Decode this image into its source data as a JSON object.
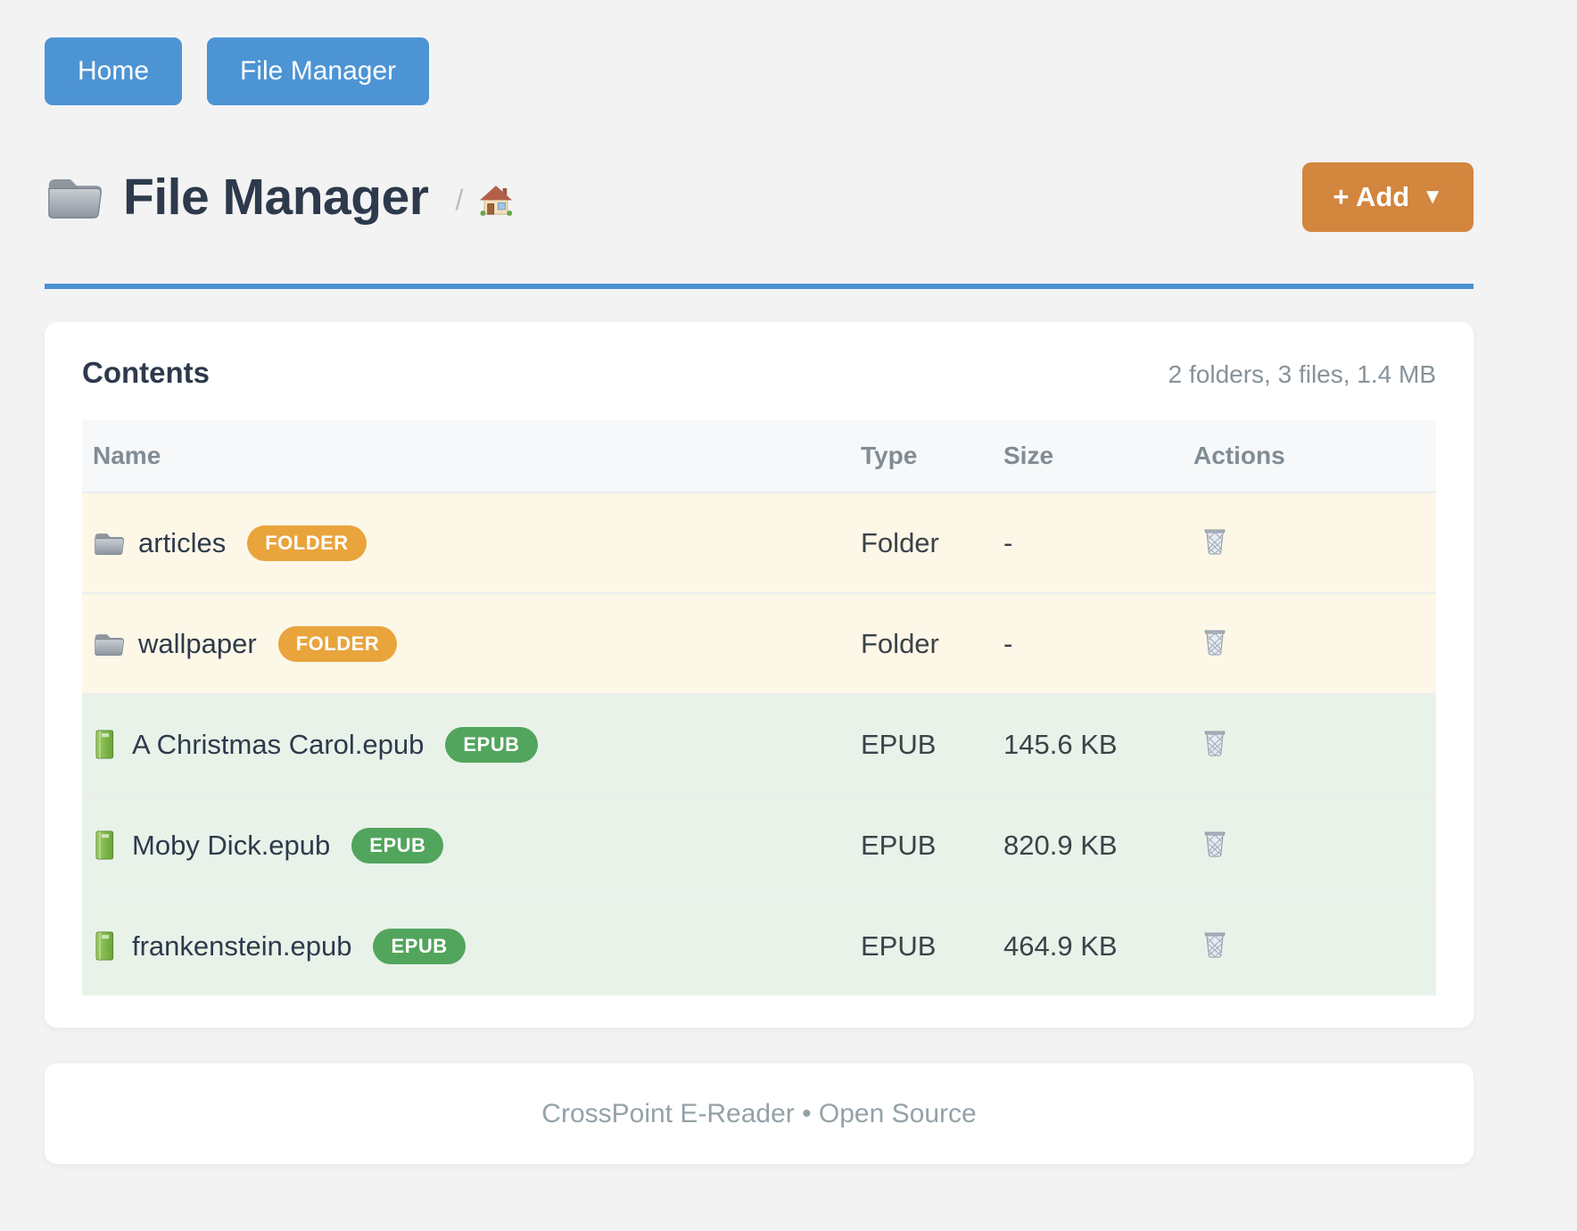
{
  "nav": {
    "items": [
      {
        "label": "Home"
      },
      {
        "label": "File Manager"
      }
    ]
  },
  "header": {
    "icon": "folder-icon",
    "title": "File Manager",
    "breadcrumb_separator": "/",
    "breadcrumb_home_icon": "home-icon",
    "add_button": {
      "label": "+ Add",
      "caret": "▼"
    }
  },
  "contents": {
    "title": "Contents",
    "summary": "2 folders, 3 files, 1.4 MB",
    "table": {
      "columns": [
        "Name",
        "Type",
        "Size",
        "Actions"
      ],
      "badge_colors": {
        "FOLDER": "#e9a43c",
        "EPUB": "#52a55c"
      },
      "rows": [
        {
          "icon": "folder-icon",
          "name": "articles",
          "badge": "FOLDER",
          "row_kind": "folder",
          "type": "Folder",
          "size": "-",
          "action_icon": "trash-icon"
        },
        {
          "icon": "folder-icon",
          "name": "wallpaper",
          "badge": "FOLDER",
          "row_kind": "folder",
          "type": "Folder",
          "size": "-",
          "action_icon": "trash-icon"
        },
        {
          "icon": "book-icon",
          "name": "A Christmas Carol.epub",
          "badge": "EPUB",
          "row_kind": "epub",
          "type": "EPUB",
          "size": "145.6 KB",
          "action_icon": "trash-icon"
        },
        {
          "icon": "book-icon",
          "name": "Moby Dick.epub",
          "badge": "EPUB",
          "row_kind": "epub",
          "type": "EPUB",
          "size": "820.9 KB",
          "action_icon": "trash-icon"
        },
        {
          "icon": "book-icon",
          "name": "frankenstein.epub",
          "badge": "EPUB",
          "row_kind": "epub",
          "type": "EPUB",
          "size": "464.9 KB",
          "action_icon": "trash-icon"
        }
      ]
    }
  },
  "footer": {
    "text": "CrossPoint E-Reader • Open Source"
  },
  "colors": {
    "accent_blue": "#4d94d4",
    "accent_orange": "#d2863e",
    "folder_badge": "#e9a43c",
    "epub_badge": "#52a55c",
    "folder_row_bg": "#fdf7e7",
    "epub_row_bg": "#e9f2e9",
    "heading_text": "#2d3a4c"
  }
}
